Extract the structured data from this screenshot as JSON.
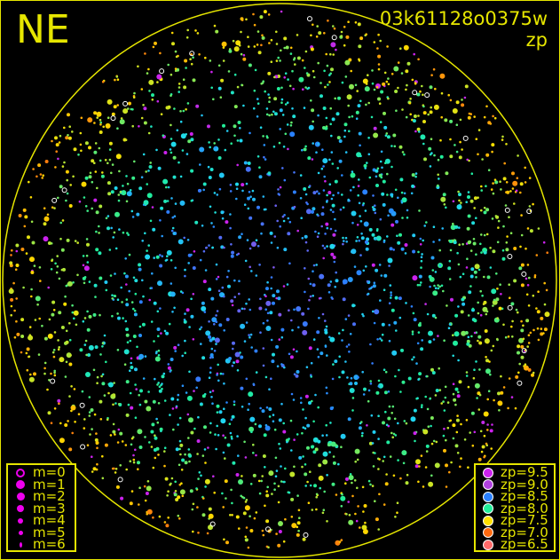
{
  "header": {
    "direction": "NE",
    "image_id": "03k61128o0375w",
    "color_key": "zp"
  },
  "colors": {
    "frame": "#e6e600",
    "horizon_circle": "#e6e600",
    "background": "#000000"
  },
  "chart_data": {
    "type": "scatter",
    "description_of_axes": "all-sky polar projection",
    "grid": false,
    "horizon_circle": true,
    "size_legend": {
      "placement": "bottom-left",
      "entries": [
        {
          "label": "m=0",
          "symbol": "open-circle"
        },
        {
          "label": "m=1",
          "symbol": "filled-circle"
        },
        {
          "label": "m=2",
          "symbol": "filled-circle"
        },
        {
          "label": "m=3",
          "symbol": "filled-circle"
        },
        {
          "label": "m=4",
          "symbol": "filled-circle"
        },
        {
          "label": "m=5",
          "symbol": "filled-circle"
        },
        {
          "label": "m=6",
          "symbol": "filled-circle"
        }
      ]
    },
    "color_legend": {
      "placement": "bottom-right",
      "entries": [
        {
          "label": "zp=9.5",
          "color": "#cc22ee"
        },
        {
          "label": "zp=9.0",
          "color": "#b040e0"
        },
        {
          "label": "zp=8.5",
          "color": "#2a80ff"
        },
        {
          "label": "zp=8.0",
          "color": "#20ee9a"
        },
        {
          "label": "zp=7.5",
          "color": "#ffe000"
        },
        {
          "label": "zp=7.0",
          "color": "#ff6a10"
        },
        {
          "label": "zp=6.5",
          "color": "#ff6a6a"
        }
      ]
    }
  }
}
